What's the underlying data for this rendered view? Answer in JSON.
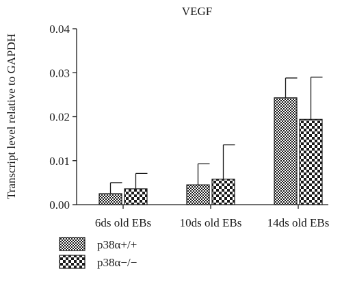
{
  "chart_data": {
    "type": "bar",
    "title": "VEGF",
    "xlabel": "",
    "ylabel": "Transcript level relative to GAPDH",
    "ylim": [
      0,
      0.04
    ],
    "yticks": [
      "0.00",
      "0.01",
      "0.02",
      "0.03",
      "0.04"
    ],
    "categories": [
      "6ds old EBs",
      "10ds old EBs",
      "14ds old EBs"
    ],
    "series": [
      {
        "name": "p38α+/+",
        "pattern": "fine-checker",
        "values": [
          0.0025,
          0.0045,
          0.0243
        ],
        "errors": [
          0.0025,
          0.0048,
          0.0045
        ]
      },
      {
        "name": "p38α−/−",
        "pattern": "coarse-checker",
        "values": [
          0.0036,
          0.0058,
          0.0194
        ],
        "errors": [
          0.0035,
          0.0078,
          0.0096
        ]
      }
    ],
    "legend_position": "bottom-left",
    "grid": false,
    "colors": {
      "ink": "#1a1a1a",
      "background": "#ffffff"
    }
  }
}
